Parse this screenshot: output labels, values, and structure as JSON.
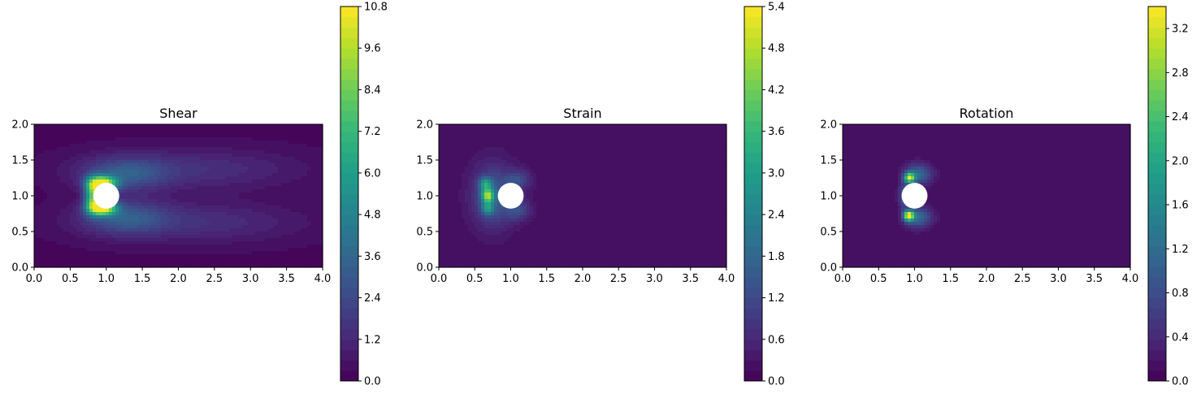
{
  "chart_data": [
    {
      "type": "heatmap",
      "title": "Shear",
      "xlim": [
        0,
        4
      ],
      "ylim": [
        0,
        2
      ],
      "xticks": [
        "0.0",
        "0.5",
        "1.0",
        "1.5",
        "2.0",
        "2.5",
        "3.0",
        "3.5",
        "4.0"
      ],
      "yticks": [
        "0.0",
        "0.5",
        "1.0",
        "1.5",
        "2.0"
      ],
      "colorbar": {
        "range": [
          0,
          10.8
        ],
        "ticks": [
          "0.0",
          "1.2",
          "2.4",
          "3.6",
          "4.8",
          "6.0",
          "7.2",
          "8.4",
          "9.6",
          "10.8"
        ]
      },
      "obstacle": {
        "center": [
          1.0,
          1.0
        ],
        "radius": 0.18
      },
      "background_value": 0.2,
      "features": [
        {
          "x": 2.2,
          "y": 1.37,
          "sx": 1.05,
          "sy": 0.2,
          "value": 1.3
        },
        {
          "x": 2.2,
          "y": 0.63,
          "sx": 1.05,
          "sy": 0.2,
          "value": 1.3
        },
        {
          "x": 1.25,
          "y": 1.3,
          "sx": 0.4,
          "sy": 0.16,
          "value": 2.4
        },
        {
          "x": 1.25,
          "y": 0.7,
          "sx": 0.4,
          "sy": 0.16,
          "value": 2.4
        },
        {
          "x": 0.95,
          "y": 1.17,
          "sx": 0.13,
          "sy": 0.07,
          "value": 9.8
        },
        {
          "x": 0.95,
          "y": 0.83,
          "sx": 0.13,
          "sy": 0.07,
          "value": 9.8
        },
        {
          "x": 0.82,
          "y": 1.08,
          "sx": 0.08,
          "sy": 0.12,
          "value": 4.5
        },
        {
          "x": 0.82,
          "y": 0.92,
          "sx": 0.08,
          "sy": 0.12,
          "value": 4.5
        }
      ]
    },
    {
      "type": "heatmap",
      "title": "Strain",
      "xlim": [
        0,
        4
      ],
      "ylim": [
        0,
        2
      ],
      "xticks": [
        "0.0",
        "0.5",
        "1.0",
        "1.5",
        "2.0",
        "2.5",
        "3.0",
        "3.5",
        "4.0"
      ],
      "yticks": [
        "0.0",
        "0.5",
        "1.0",
        "1.5",
        "2.0"
      ],
      "colorbar": {
        "range": [
          0,
          5.4
        ],
        "ticks": [
          "0.0",
          "0.6",
          "1.2",
          "1.8",
          "2.4",
          "3.0",
          "3.6",
          "4.2",
          "4.8",
          "5.4"
        ]
      },
      "obstacle": {
        "center": [
          1.0,
          1.0
        ],
        "radius": 0.18
      },
      "background_value": 0.2,
      "features": [
        {
          "x": 0.75,
          "y": 1.0,
          "sx": 0.2,
          "sy": 0.3,
          "value": 1.4
        },
        {
          "x": 1.1,
          "y": 1.22,
          "sx": 0.12,
          "sy": 0.1,
          "value": 1.0
        },
        {
          "x": 1.1,
          "y": 0.8,
          "sx": 0.12,
          "sy": 0.1,
          "value": 1.0
        },
        {
          "x": 0.68,
          "y": 1.0,
          "sx": 0.06,
          "sy": 0.07,
          "value": 3.4
        },
        {
          "x": 0.65,
          "y": 1.17,
          "sx": 0.06,
          "sy": 0.06,
          "value": 2.0
        },
        {
          "x": 0.68,
          "y": 0.82,
          "sx": 0.06,
          "sy": 0.06,
          "value": 1.8
        }
      ]
    },
    {
      "type": "heatmap",
      "title": "Rotation",
      "xlim": [
        0,
        4
      ],
      "ylim": [
        0,
        2
      ],
      "xticks": [
        "0.0",
        "0.5",
        "1.0",
        "1.5",
        "2.0",
        "2.5",
        "3.0",
        "3.5",
        "4.0"
      ],
      "yticks": [
        "0.0",
        "0.5",
        "1.0",
        "1.5",
        "2.0"
      ],
      "colorbar": {
        "range": [
          0,
          3.4
        ],
        "ticks": [
          "0.0",
          "0.4",
          "0.8",
          "1.2",
          "1.6",
          "2.0",
          "2.4",
          "2.8",
          "3.2"
        ]
      },
      "obstacle": {
        "center": [
          1.0,
          1.0
        ],
        "radius": 0.18
      },
      "background_value": 0.1,
      "features": [
        {
          "x": 1.05,
          "y": 1.3,
          "sx": 0.13,
          "sy": 0.1,
          "value": 1.1
        },
        {
          "x": 1.05,
          "y": 0.7,
          "sx": 0.13,
          "sy": 0.1,
          "value": 1.1
        },
        {
          "x": 0.93,
          "y": 1.25,
          "sx": 0.05,
          "sy": 0.05,
          "value": 2.6
        },
        {
          "x": 0.92,
          "y": 0.72,
          "sx": 0.05,
          "sy": 0.05,
          "value": 3.0
        },
        {
          "x": 0.85,
          "y": 1.0,
          "sx": 0.05,
          "sy": 0.12,
          "value": 0.9
        }
      ]
    }
  ]
}
